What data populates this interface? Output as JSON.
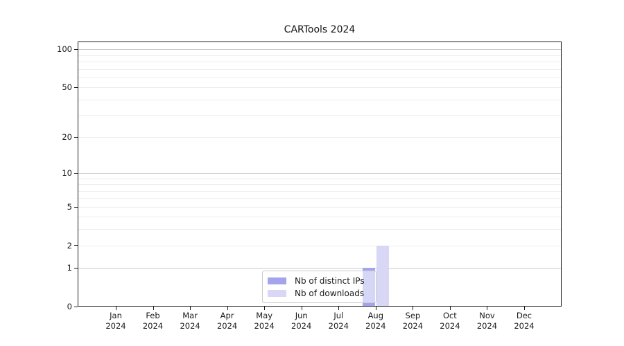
{
  "title": "CARTools 2024",
  "chart_data": {
    "type": "bar",
    "categories": [
      "Jan 2024",
      "Feb 2024",
      "Mar 2024",
      "Apr 2024",
      "May 2024",
      "Jun 2024",
      "Jul 2024",
      "Aug 2024",
      "Sep 2024",
      "Oct 2024",
      "Nov 2024",
      "Dec 2024"
    ],
    "series": [
      {
        "name": "Nb of distinct IPs",
        "color": "#a4a4ed",
        "values": [
          0,
          0,
          0,
          0,
          0,
          0,
          0,
          1,
          0,
          0,
          0,
          0
        ]
      },
      {
        "name": "Nb of downloads",
        "color": "#d8d8f6",
        "values": [
          0,
          0,
          0,
          0,
          0,
          0,
          0,
          2,
          0,
          0,
          0,
          0
        ]
      }
    ],
    "yscale": "log1p",
    "yticks": [
      0,
      1,
      2,
      5,
      10,
      20,
      50,
      100
    ],
    "ylim": [
      0,
      115
    ],
    "grid": "horizontal",
    "grid_minor_values": [
      2,
      3,
      4,
      5,
      6,
      7,
      8,
      9,
      20,
      30,
      40,
      50,
      60,
      70,
      80,
      90
    ],
    "grid_major_values": [
      1,
      10,
      100
    ],
    "legend_position": "bottom-center",
    "colors": {
      "grid_minor": "#ededed",
      "grid_major": "#c9c9c9",
      "axis": "#1a1a1a",
      "text": "#1a1a1a",
      "background": "#ffffff"
    }
  }
}
